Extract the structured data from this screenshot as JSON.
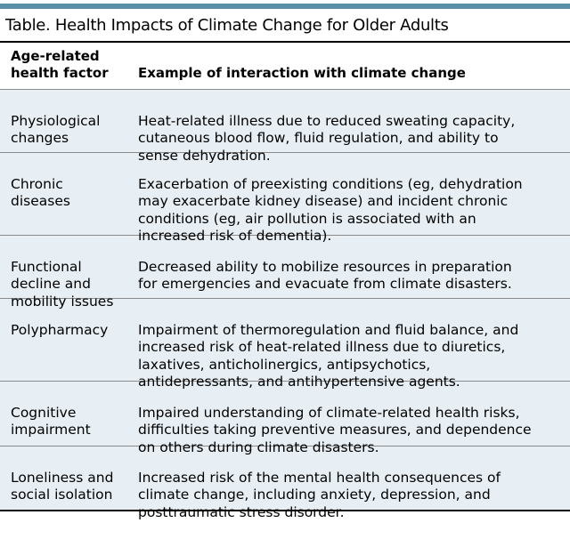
{
  "title": "Table. Health Impacts of Climate Change for Older Adults",
  "header": {
    "col1": "Age-related\nhealth factor",
    "col2": "Example of interaction with climate change"
  },
  "rows": [
    {
      "factor": "Physiological\nchanges",
      "example": "Heat-related illness due to reduced sweating capacity,\ncutaneous blood flow, fluid regulation, and ability to\nsense dehydration."
    },
    {
      "factor": "Chronic\ndiseases",
      "example": "Exacerbation of preexisting conditions (eg, dehydration\nmay exacerbate kidney disease) and incident chronic\nconditions (eg, air pollution is associated with an\nincreased risk of dementia)."
    },
    {
      "factor": "Functional\ndecline and\nmobility issues",
      "example": "Decreased ability to mobilize resources in preparation\nfor emergencies and evacuate from climate disasters."
    },
    {
      "factor": "Polypharmacy",
      "example": "Impairment of thermoregulation and fluid balance, and\nincreased risk of heat-related illness due to diuretics,\nlaxatives, anticholinergics, antipsychotics,\nantidepressants, and antihypertensive agents."
    },
    {
      "factor": "Cognitive\nimpairment",
      "example": "Impaired understanding of climate-related health risks,\ndifficulties taking preventive measures, and dependence\non others during climate disasters."
    },
    {
      "factor": "Loneliness and\nsocial isolation",
      "example": "Increased risk of the mental health consequences of\nclimate change, including anxiety, depression, and\nposttraumatic stress disorder."
    }
  ]
}
